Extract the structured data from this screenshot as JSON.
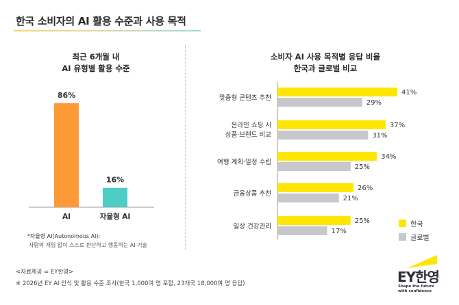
{
  "page": {
    "title": "한국 소비자의 AI 활용 수준과 사용 목적",
    "source": "<자료제공 = EY한영>",
    "survey_note": "※ 2026년 EY AI 인식 및 활용 수준 조사(한국 1,000여 명 포함, 23개국 18,000여 명 응답)",
    "footnote_line1": "*자율형 AI(Autonomous AI):",
    "footnote_line2": "사람의 개입 없이 스스로 판단하고 행동하는 AI 기술"
  },
  "logo": {
    "brand": "EY한영",
    "tagline_line1": "Shape the future",
    "tagline_line2": "with confidence"
  },
  "colors": {
    "orange": "#fd9a35",
    "teal": "#4ecdc4",
    "yellow": "#ffe600",
    "gray": "#c7c7cc",
    "axis": "#9a9a9a"
  },
  "chart_data": [
    {
      "type": "bar",
      "title_line1": "최근 6개월 내",
      "title_line2": "AI 유형별 활용 수준",
      "categories": [
        "AI",
        "자율형 AI"
      ],
      "values": [
        86,
        16
      ],
      "value_labels": [
        "86%",
        "16%"
      ],
      "ylim": [
        0,
        100
      ]
    },
    {
      "type": "bar",
      "orientation": "horizontal",
      "title_line1": "소비자 AI 사용 목적별 응답 비율",
      "title_line2": "한국과 글로벌 비교",
      "categories": [
        [
          "맞춤형 콘텐츠 추천"
        ],
        [
          "온라인 쇼핑 시",
          "상품·브랜드 비교"
        ],
        [
          "여행 계획·일정 수립"
        ],
        [
          "금융상품 추천"
        ],
        [
          "일상 건강관리"
        ]
      ],
      "series": [
        {
          "name": "한국",
          "values": [
            41,
            37,
            34,
            26,
            25
          ],
          "labels": [
            "41%",
            "37%",
            "34%",
            "26%",
            "25%"
          ]
        },
        {
          "name": "글로벌",
          "values": [
            29,
            31,
            25,
            21,
            17
          ],
          "labels": [
            "29%",
            "31%",
            "25%",
            "21%",
            "17%"
          ]
        }
      ],
      "xlim": [
        0,
        41
      ]
    }
  ]
}
